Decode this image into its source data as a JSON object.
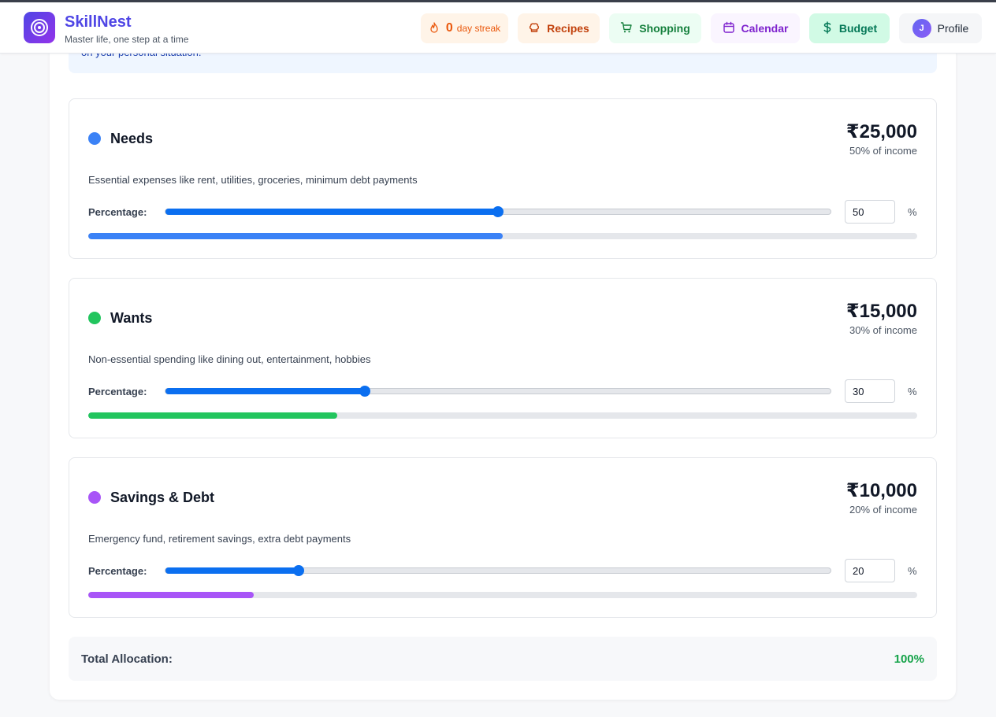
{
  "brand": {
    "name": "SkillNest",
    "tagline": "Master life, one step at a time"
  },
  "nav": {
    "streak_count": "0",
    "streak_label": "day streak",
    "recipes": "Recipes",
    "shopping": "Shopping",
    "calendar": "Calendar",
    "budget": "Budget",
    "profile": "Profile",
    "avatar_initial": "J"
  },
  "info_text": "on your personal situation.",
  "categories": [
    {
      "name": "Needs",
      "amount": "₹25,000",
      "of_income": "50% of income",
      "description": "Essential expenses like rent, utilities, groceries, minimum debt payments",
      "percentage_label": "Percentage:",
      "percentage": 50,
      "percent_sign": "%",
      "color": "#3b82f6"
    },
    {
      "name": "Wants",
      "amount": "₹15,000",
      "of_income": "30% of income",
      "description": "Non-essential spending like dining out, entertainment, hobbies",
      "percentage_label": "Percentage:",
      "percentage": 30,
      "percent_sign": "%",
      "color": "#22c55e"
    },
    {
      "name": "Savings & Debt",
      "amount": "₹10,000",
      "of_income": "20% of income",
      "description": "Emergency fund, retirement savings, extra debt payments",
      "percentage_label": "Percentage:",
      "percentage": 20,
      "percent_sign": "%",
      "color": "#a855f7"
    }
  ],
  "total": {
    "label": "Total Allocation:",
    "value": "100%"
  },
  "colors": {
    "brand": "#4f46e5",
    "slider": "#0b6ff0",
    "total_ok": "#16a34a"
  }
}
